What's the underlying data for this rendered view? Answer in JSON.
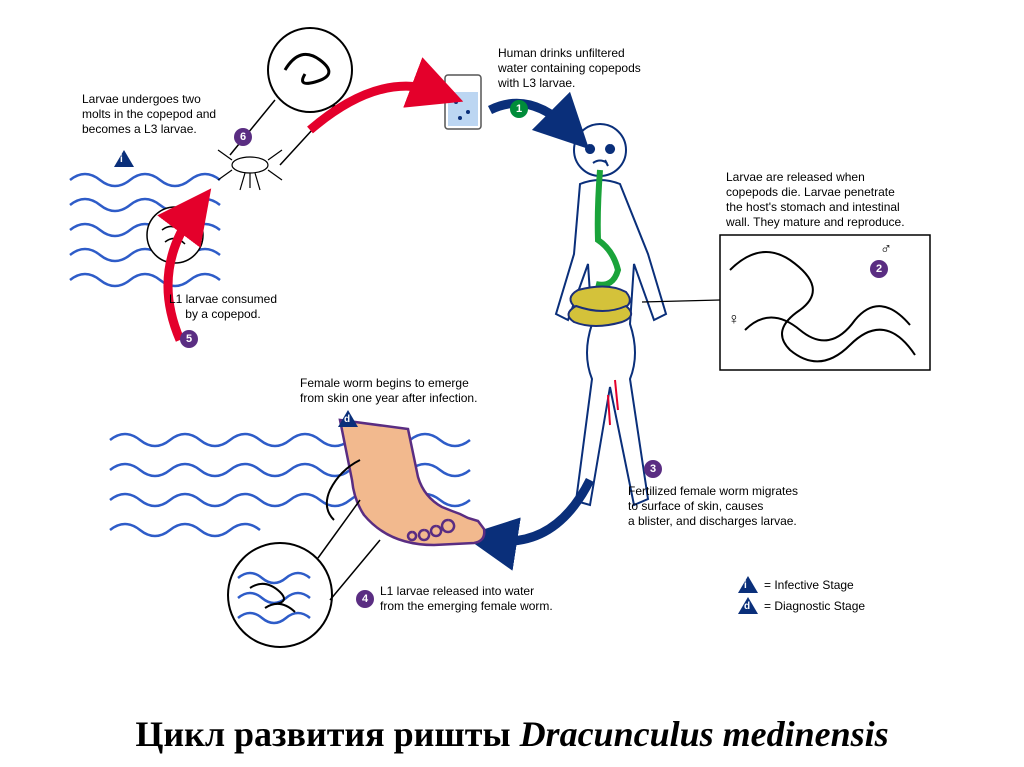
{
  "title_pre": "Цикл развития ришты ",
  "title_ital": "Dracunculus medinensis",
  "colors": {
    "green": "#008c3a",
    "purple": "#5a2d82",
    "blue": "#0a2f7a",
    "red": "#e4002b",
    "wave": "#2e5cc8",
    "bodyOutline": "#0a2f7a",
    "esoph": "#1aa33a",
    "intestine": "#d4c23a",
    "intestineBorder": "#1a2f7a",
    "skin": "#f2b98e",
    "footLine": "#5a2d82"
  },
  "stages": {
    "s1": {
      "num": "1",
      "text": "Human drinks unfiltered\nwater containing copepods\nwith L3 larvae."
    },
    "s2": {
      "num": "2",
      "text": "Larvae are released when\ncopepods die.  Larvae penetrate\nthe host's stomach and intestinal\nwall.  They mature and reproduce."
    },
    "s3": {
      "num": "3",
      "text": "Fertilized female worm migrates\nto surface of skin, causes\na blister, and discharges larvae."
    },
    "s4": {
      "num": "4",
      "text": "L1 larvae released into water\nfrom the emerging female worm."
    },
    "s4b": {
      "text": "Female worm begins to emerge\nfrom skin one year after infection."
    },
    "s5": {
      "num": "5",
      "text": "L1 larvae consumed\nby a copepod."
    },
    "s6": {
      "num": "6",
      "text": "Larvae undergoes two\nmolts in the copepod and\nbecomes a L3 larvae."
    }
  },
  "triangles": {
    "i": "i",
    "d": "d"
  },
  "legend": {
    "i": "= Infective Stage",
    "d": "= Diagnostic Stage"
  },
  "symbols": {
    "male": "♂",
    "female": "♀"
  }
}
